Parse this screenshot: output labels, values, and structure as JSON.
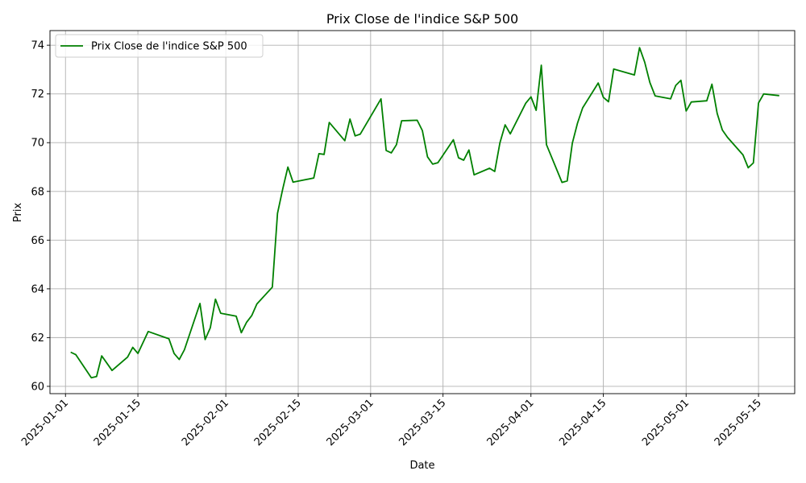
{
  "chart_data": {
    "type": "line",
    "title": "Prix Close de l'indice S&P 500",
    "xlabel": "Date",
    "ylabel": "Prix",
    "xlim": [
      "2024-12-29",
      "2025-05-22"
    ],
    "ylim": [
      59.7,
      74.6
    ],
    "grid": true,
    "legend_position": "top-left",
    "x_ticks": [
      "2025-01-01",
      "2025-01-15",
      "2025-02-01",
      "2025-02-15",
      "2025-03-01",
      "2025-03-15",
      "2025-04-01",
      "2025-04-15",
      "2025-05-01",
      "2025-05-15"
    ],
    "y_ticks": [
      60,
      62,
      64,
      66,
      68,
      70,
      72,
      74
    ],
    "series": [
      {
        "name": "Prix Close de l'indice S&P 500",
        "color": "#008000",
        "x": [
          "2025-01-02",
          "2025-01-03",
          "2025-01-06",
          "2025-01-07",
          "2025-01-08",
          "2025-01-10",
          "2025-01-13",
          "2025-01-14",
          "2025-01-15",
          "2025-01-17",
          "2025-01-21",
          "2025-01-22",
          "2025-01-23",
          "2025-01-24",
          "2025-01-27",
          "2025-01-28",
          "2025-01-29",
          "2025-01-30",
          "2025-01-31",
          "2025-02-03",
          "2025-02-04",
          "2025-02-05",
          "2025-02-06",
          "2025-02-07",
          "2025-02-10",
          "2025-02-11",
          "2025-02-12",
          "2025-02-13",
          "2025-02-14",
          "2025-02-18",
          "2025-02-19",
          "2025-02-20",
          "2025-02-21",
          "2025-02-24",
          "2025-02-25",
          "2025-02-26",
          "2025-02-27",
          "2025-03-03",
          "2025-03-04",
          "2025-03-05",
          "2025-03-06",
          "2025-03-07",
          "2025-03-10",
          "2025-03-11",
          "2025-03-12",
          "2025-03-13",
          "2025-03-14",
          "2025-03-17",
          "2025-03-18",
          "2025-03-19",
          "2025-03-20",
          "2025-03-21",
          "2025-03-24",
          "2025-03-25",
          "2025-03-26",
          "2025-03-27",
          "2025-03-28",
          "2025-03-31",
          "2025-04-01",
          "2025-04-02",
          "2025-04-03",
          "2025-04-04",
          "2025-04-07",
          "2025-04-08",
          "2025-04-09",
          "2025-04-10",
          "2025-04-11",
          "2025-04-14",
          "2025-04-15",
          "2025-04-16",
          "2025-04-17",
          "2025-04-21",
          "2025-04-22",
          "2025-04-23",
          "2025-04-24",
          "2025-04-25",
          "2025-04-28",
          "2025-04-29",
          "2025-04-30",
          "2025-05-01",
          "2025-05-02",
          "2025-05-05",
          "2025-05-06",
          "2025-05-07",
          "2025-05-08",
          "2025-05-09",
          "2025-05-12",
          "2025-05-13",
          "2025-05-14",
          "2025-05-15",
          "2025-05-16",
          "2025-05-19"
        ],
        "y": [
          61.4,
          61.3,
          60.35,
          60.4,
          61.25,
          60.65,
          61.2,
          61.6,
          61.35,
          62.25,
          61.95,
          61.35,
          61.1,
          61.5,
          63.4,
          61.92,
          62.4,
          63.58,
          63.0,
          62.88,
          62.2,
          62.62,
          62.9,
          63.38,
          64.07,
          67.1,
          68.1,
          69.0,
          68.38,
          68.55,
          69.55,
          69.52,
          70.83,
          70.08,
          70.97,
          70.28,
          70.35,
          71.8,
          69.68,
          69.58,
          69.92,
          70.9,
          70.92,
          70.5,
          69.42,
          69.12,
          69.18,
          70.12,
          69.38,
          69.28,
          69.7,
          68.68,
          68.95,
          68.82,
          70.0,
          70.73,
          70.36,
          71.62,
          71.88,
          71.33,
          73.18,
          69.92,
          68.37,
          68.43,
          69.98,
          70.8,
          71.43,
          72.45,
          71.86,
          71.68,
          73.02,
          72.78,
          73.9,
          73.3,
          72.47,
          71.92,
          71.8,
          72.35,
          72.56,
          71.3,
          71.67,
          71.72,
          72.4,
          71.2,
          70.52,
          70.22,
          69.5,
          68.97,
          69.17,
          71.63,
          72.0,
          71.93
        ]
      }
    ]
  }
}
